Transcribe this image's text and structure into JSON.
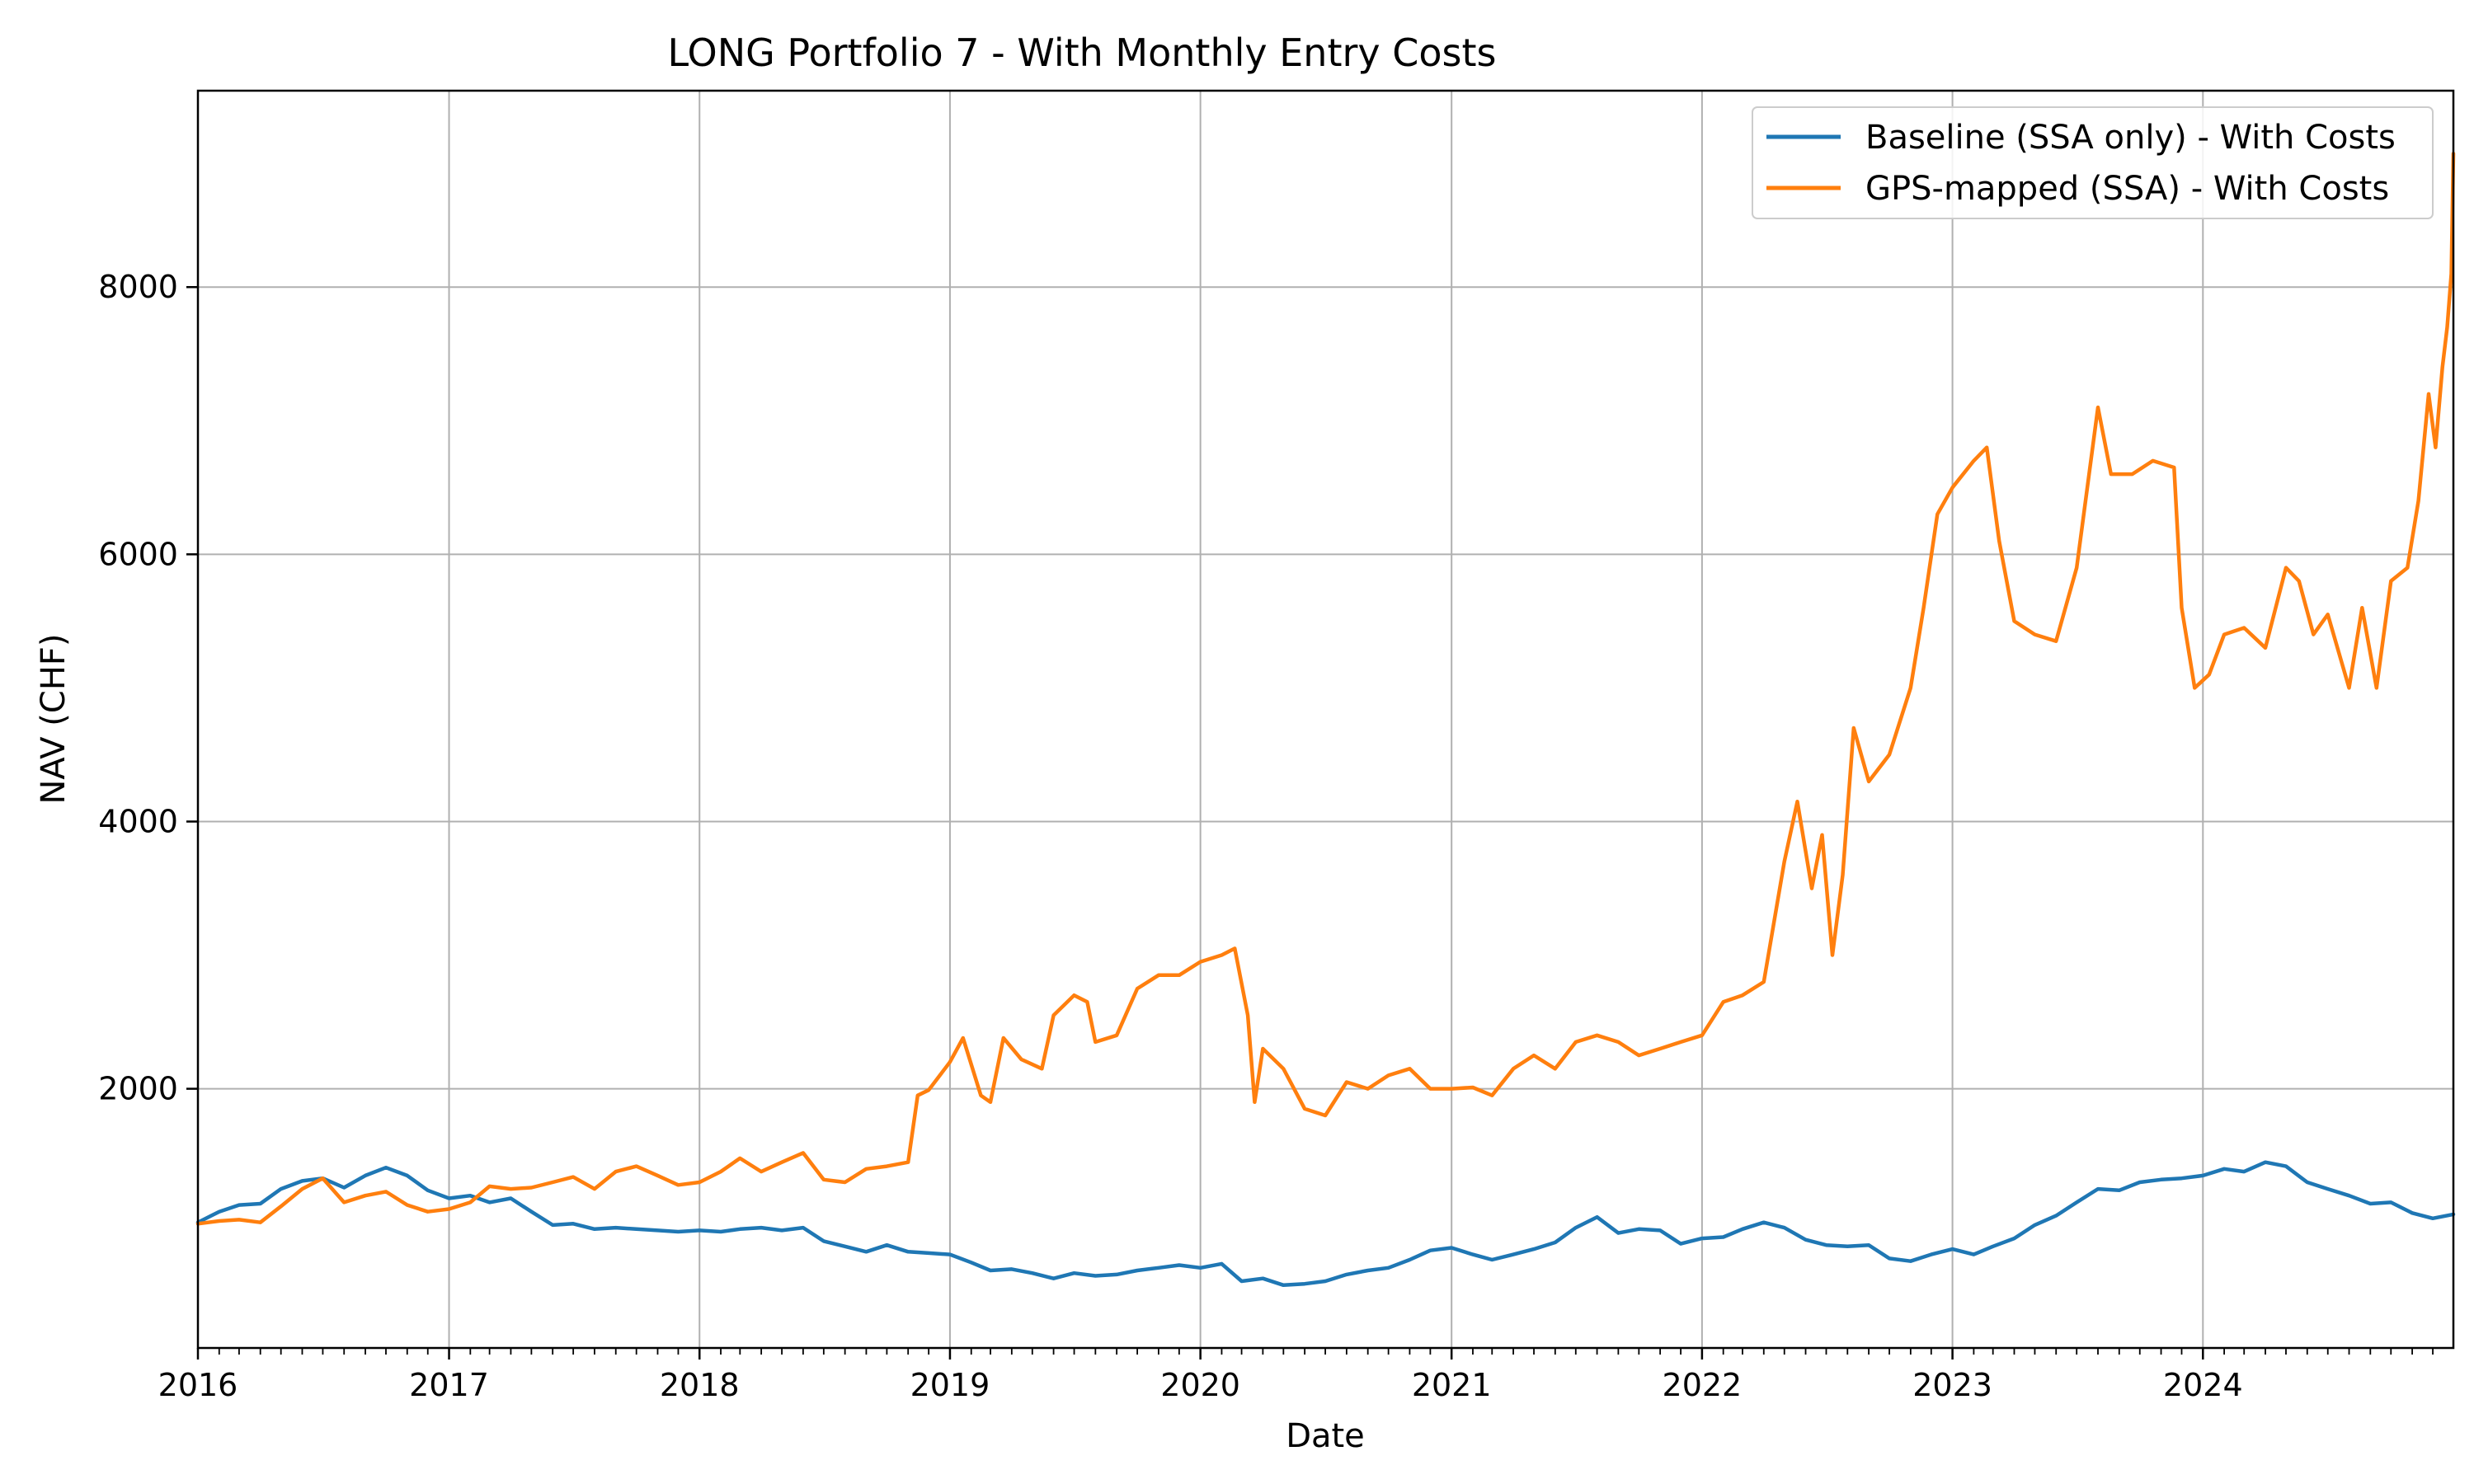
{
  "chart_data": {
    "type": "line",
    "title": "LONG Portfolio 7 - With Monthly Entry Costs",
    "xlabel": "Date",
    "ylabel": "NAV (CHF)",
    "x_range": [
      "2016-01-01",
      "2024-12-31"
    ],
    "ylim": [
      60,
      9470
    ],
    "x_ticks": [
      "2016",
      "2017",
      "2018",
      "2019",
      "2020",
      "2021",
      "2022",
      "2023",
      "2024"
    ],
    "y_ticks": [
      2000,
      4000,
      6000,
      8000
    ],
    "grid": true,
    "legend_position": "top-right",
    "series": [
      {
        "name": "Baseline (SSA only) - With Costs",
        "color": "#1f77b4",
        "points": [
          [
            "2016-01-01",
            1000
          ],
          [
            "2016-02-01",
            1080
          ],
          [
            "2016-03-01",
            1130
          ],
          [
            "2016-04-01",
            1140
          ],
          [
            "2016-05-01",
            1250
          ],
          [
            "2016-06-01",
            1310
          ],
          [
            "2016-07-01",
            1330
          ],
          [
            "2016-08-01",
            1260
          ],
          [
            "2016-09-01",
            1350
          ],
          [
            "2016-10-01",
            1410
          ],
          [
            "2016-11-01",
            1350
          ],
          [
            "2016-12-01",
            1240
          ],
          [
            "2017-01-01",
            1180
          ],
          [
            "2017-02-01",
            1200
          ],
          [
            "2017-03-01",
            1150
          ],
          [
            "2017-04-01",
            1180
          ],
          [
            "2017-05-01",
            1080
          ],
          [
            "2017-06-01",
            980
          ],
          [
            "2017-07-01",
            990
          ],
          [
            "2017-08-01",
            950
          ],
          [
            "2017-09-01",
            960
          ],
          [
            "2017-10-01",
            950
          ],
          [
            "2017-11-01",
            940
          ],
          [
            "2017-12-01",
            930
          ],
          [
            "2018-01-01",
            940
          ],
          [
            "2018-02-01",
            930
          ],
          [
            "2018-03-01",
            950
          ],
          [
            "2018-04-01",
            960
          ],
          [
            "2018-05-01",
            940
          ],
          [
            "2018-06-01",
            960
          ],
          [
            "2018-07-01",
            860
          ],
          [
            "2018-08-01",
            820
          ],
          [
            "2018-09-01",
            780
          ],
          [
            "2018-10-01",
            830
          ],
          [
            "2018-11-01",
            780
          ],
          [
            "2018-12-01",
            770
          ],
          [
            "2019-01-01",
            760
          ],
          [
            "2019-02-01",
            700
          ],
          [
            "2019-03-01",
            640
          ],
          [
            "2019-04-01",
            650
          ],
          [
            "2019-05-01",
            620
          ],
          [
            "2019-06-01",
            580
          ],
          [
            "2019-07-01",
            620
          ],
          [
            "2019-08-01",
            600
          ],
          [
            "2019-09-01",
            610
          ],
          [
            "2019-10-01",
            640
          ],
          [
            "2019-11-01",
            660
          ],
          [
            "2019-12-01",
            680
          ],
          [
            "2020-01-01",
            660
          ],
          [
            "2020-02-01",
            690
          ],
          [
            "2020-03-01",
            560
          ],
          [
            "2020-04-01",
            580
          ],
          [
            "2020-05-01",
            530
          ],
          [
            "2020-06-01",
            540
          ],
          [
            "2020-07-01",
            560
          ],
          [
            "2020-08-01",
            610
          ],
          [
            "2020-09-01",
            640
          ],
          [
            "2020-10-01",
            660
          ],
          [
            "2020-11-01",
            720
          ],
          [
            "2020-12-01",
            790
          ],
          [
            "2021-01-01",
            810
          ],
          [
            "2021-02-01",
            760
          ],
          [
            "2021-03-01",
            720
          ],
          [
            "2021-04-01",
            760
          ],
          [
            "2021-05-01",
            800
          ],
          [
            "2021-06-01",
            850
          ],
          [
            "2021-07-01",
            960
          ],
          [
            "2021-08-01",
            1040
          ],
          [
            "2021-09-01",
            920
          ],
          [
            "2021-10-01",
            950
          ],
          [
            "2021-11-01",
            940
          ],
          [
            "2021-12-01",
            840
          ],
          [
            "2022-01-01",
            880
          ],
          [
            "2022-02-01",
            890
          ],
          [
            "2022-03-01",
            950
          ],
          [
            "2022-04-01",
            1000
          ],
          [
            "2022-05-01",
            960
          ],
          [
            "2022-06-01",
            870
          ],
          [
            "2022-07-01",
            830
          ],
          [
            "2022-08-01",
            820
          ],
          [
            "2022-09-01",
            830
          ],
          [
            "2022-10-01",
            730
          ],
          [
            "2022-11-01",
            710
          ],
          [
            "2022-12-01",
            760
          ],
          [
            "2023-01-01",
            800
          ],
          [
            "2023-02-01",
            760
          ],
          [
            "2023-03-01",
            820
          ],
          [
            "2023-04-01",
            880
          ],
          [
            "2023-05-01",
            980
          ],
          [
            "2023-06-01",
            1050
          ],
          [
            "2023-07-01",
            1150
          ],
          [
            "2023-08-01",
            1250
          ],
          [
            "2023-09-01",
            1240
          ],
          [
            "2023-10-01",
            1300
          ],
          [
            "2023-11-01",
            1320
          ],
          [
            "2023-12-01",
            1330
          ],
          [
            "2024-01-01",
            1350
          ],
          [
            "2024-02-01",
            1400
          ],
          [
            "2024-03-01",
            1380
          ],
          [
            "2024-04-01",
            1450
          ],
          [
            "2024-05-01",
            1420
          ],
          [
            "2024-06-01",
            1300
          ],
          [
            "2024-07-01",
            1250
          ],
          [
            "2024-08-01",
            1200
          ],
          [
            "2024-09-01",
            1140
          ],
          [
            "2024-10-01",
            1150
          ],
          [
            "2024-11-01",
            1070
          ],
          [
            "2024-12-01",
            1030
          ],
          [
            "2024-12-31",
            1060
          ]
        ]
      },
      {
        "name": "GPS-mapped (SSA) - With Costs",
        "color": "#ff7f0e",
        "points": [
          [
            "2016-01-01",
            990
          ],
          [
            "2016-02-01",
            1010
          ],
          [
            "2016-03-01",
            1020
          ],
          [
            "2016-04-01",
            1000
          ],
          [
            "2016-05-01",
            1120
          ],
          [
            "2016-06-01",
            1250
          ],
          [
            "2016-07-01",
            1330
          ],
          [
            "2016-08-01",
            1150
          ],
          [
            "2016-09-01",
            1200
          ],
          [
            "2016-10-01",
            1230
          ],
          [
            "2016-11-01",
            1130
          ],
          [
            "2016-12-01",
            1080
          ],
          [
            "2017-01-01",
            1100
          ],
          [
            "2017-02-01",
            1150
          ],
          [
            "2017-03-01",
            1270
          ],
          [
            "2017-04-01",
            1250
          ],
          [
            "2017-05-01",
            1260
          ],
          [
            "2017-06-01",
            1300
          ],
          [
            "2017-07-01",
            1340
          ],
          [
            "2017-08-01",
            1250
          ],
          [
            "2017-09-01",
            1380
          ],
          [
            "2017-10-01",
            1420
          ],
          [
            "2017-11-01",
            1350
          ],
          [
            "2017-12-01",
            1280
          ],
          [
            "2018-01-01",
            1300
          ],
          [
            "2018-02-01",
            1380
          ],
          [
            "2018-03-01",
            1480
          ],
          [
            "2018-04-01",
            1380
          ],
          [
            "2018-05-01",
            1450
          ],
          [
            "2018-06-01",
            1520
          ],
          [
            "2018-07-01",
            1320
          ],
          [
            "2018-08-01",
            1300
          ],
          [
            "2018-09-01",
            1400
          ],
          [
            "2018-10-01",
            1420
          ],
          [
            "2018-11-01",
            1450
          ],
          [
            "2018-11-15",
            1950
          ],
          [
            "2018-12-01",
            1990
          ],
          [
            "2019-01-01",
            2200
          ],
          [
            "2019-01-20",
            2380
          ],
          [
            "2019-02-15",
            1950
          ],
          [
            "2019-03-01",
            1900
          ],
          [
            "2019-03-20",
            2380
          ],
          [
            "2019-04-15",
            2220
          ],
          [
            "2019-05-15",
            2150
          ],
          [
            "2019-06-01",
            2550
          ],
          [
            "2019-07-01",
            2700
          ],
          [
            "2019-07-20",
            2650
          ],
          [
            "2019-08-01",
            2350
          ],
          [
            "2019-09-01",
            2400
          ],
          [
            "2019-10-01",
            2750
          ],
          [
            "2019-11-01",
            2850
          ],
          [
            "2019-12-01",
            2850
          ],
          [
            "2020-01-01",
            2950
          ],
          [
            "2020-02-01",
            3000
          ],
          [
            "2020-02-20",
            3050
          ],
          [
            "2020-03-10",
            2550
          ],
          [
            "2020-03-20",
            1900
          ],
          [
            "2020-04-01",
            2300
          ],
          [
            "2020-05-01",
            2150
          ],
          [
            "2020-06-01",
            1850
          ],
          [
            "2020-07-01",
            1800
          ],
          [
            "2020-08-01",
            2050
          ],
          [
            "2020-09-01",
            2000
          ],
          [
            "2020-10-01",
            2100
          ],
          [
            "2020-11-01",
            2150
          ],
          [
            "2020-12-01",
            2000
          ],
          [
            "2021-01-01",
            2000
          ],
          [
            "2021-02-01",
            2010
          ],
          [
            "2021-03-01",
            1950
          ],
          [
            "2021-04-01",
            2150
          ],
          [
            "2021-05-01",
            2250
          ],
          [
            "2021-06-01",
            2150
          ],
          [
            "2021-07-01",
            2350
          ],
          [
            "2021-08-01",
            2400
          ],
          [
            "2021-09-01",
            2350
          ],
          [
            "2021-10-01",
            2250
          ],
          [
            "2021-11-01",
            2300
          ],
          [
            "2021-12-01",
            2350
          ],
          [
            "2022-01-01",
            2400
          ],
          [
            "2022-02-01",
            2650
          ],
          [
            "2022-03-01",
            2700
          ],
          [
            "2022-04-01",
            2800
          ],
          [
            "2022-05-01",
            3700
          ],
          [
            "2022-05-20",
            4150
          ],
          [
            "2022-06-10",
            3500
          ],
          [
            "2022-06-25",
            3900
          ],
          [
            "2022-07-10",
            3000
          ],
          [
            "2022-07-25",
            3600
          ],
          [
            "2022-08-10",
            4700
          ],
          [
            "2022-09-01",
            4300
          ],
          [
            "2022-10-01",
            4500
          ],
          [
            "2022-11-01",
            5000
          ],
          [
            "2022-11-20",
            5600
          ],
          [
            "2022-12-10",
            6300
          ],
          [
            "2023-01-01",
            6500
          ],
          [
            "2023-02-01",
            6700
          ],
          [
            "2023-02-20",
            6800
          ],
          [
            "2023-03-10",
            6100
          ],
          [
            "2023-04-01",
            5500
          ],
          [
            "2023-05-01",
            5400
          ],
          [
            "2023-06-01",
            5350
          ],
          [
            "2023-07-01",
            5900
          ],
          [
            "2023-08-01",
            7100
          ],
          [
            "2023-08-20",
            6600
          ],
          [
            "2023-09-20",
            6600
          ],
          [
            "2023-10-20",
            6700
          ],
          [
            "2023-11-20",
            6650
          ],
          [
            "2023-12-01",
            5600
          ],
          [
            "2023-12-20",
            5000
          ],
          [
            "2024-01-10",
            5100
          ],
          [
            "2024-02-01",
            5400
          ],
          [
            "2024-03-01",
            5450
          ],
          [
            "2024-04-01",
            5300
          ],
          [
            "2024-05-01",
            5900
          ],
          [
            "2024-05-20",
            5800
          ],
          [
            "2024-06-10",
            5400
          ],
          [
            "2024-07-01",
            5550
          ],
          [
            "2024-08-01",
            5000
          ],
          [
            "2024-08-20",
            5600
          ],
          [
            "2024-09-10",
            5000
          ],
          [
            "2024-10-01",
            5800
          ],
          [
            "2024-10-25",
            5900
          ],
          [
            "2024-11-10",
            6400
          ],
          [
            "2024-11-25",
            7200
          ],
          [
            "2024-12-05",
            6800
          ],
          [
            "2024-12-15",
            7400
          ],
          [
            "2024-12-22",
            7700
          ],
          [
            "2024-12-28",
            8100
          ],
          [
            "2024-12-31",
            9000
          ]
        ]
      }
    ]
  }
}
